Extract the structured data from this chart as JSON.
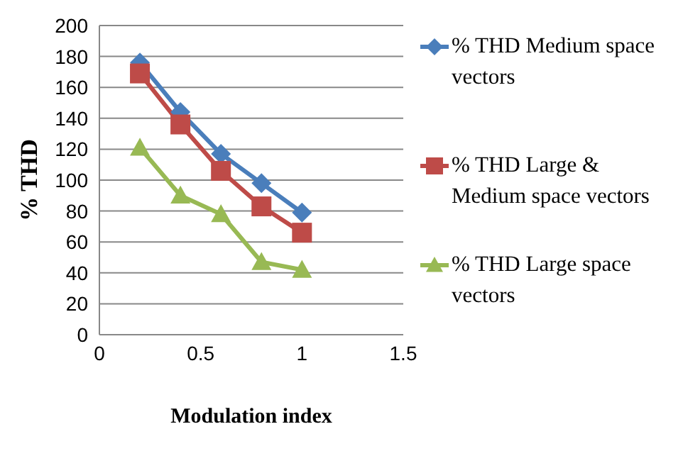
{
  "chart_data": {
    "type": "line",
    "xlabel": "Modulation index",
    "ylabel": "% THD",
    "x": [
      0.2,
      0.4,
      0.6,
      0.8,
      1
    ],
    "series": [
      {
        "name": "% THD   Medium space vectors",
        "color": "#4a7ebb",
        "marker": "diamond",
        "values": [
          176,
          144,
          117,
          98,
          79
        ]
      },
      {
        "name": "% THD   Large & Medium space vectors",
        "color": "#be4b48",
        "marker": "square",
        "values": [
          169,
          136,
          106,
          83,
          66
        ]
      },
      {
        "name": "% THD   Large space vectors",
        "color": "#98b954",
        "marker": "triangle",
        "values": [
          121,
          90,
          78,
          47,
          42
        ]
      }
    ],
    "xlim": [
      0,
      1.5
    ],
    "xticks": [
      0,
      0.5,
      1,
      1.5
    ],
    "ylim": [
      0,
      200
    ],
    "yticks": [
      0,
      20,
      40,
      60,
      80,
      100,
      120,
      140,
      160,
      180,
      200
    ],
    "grid": "y",
    "legend": "right"
  }
}
